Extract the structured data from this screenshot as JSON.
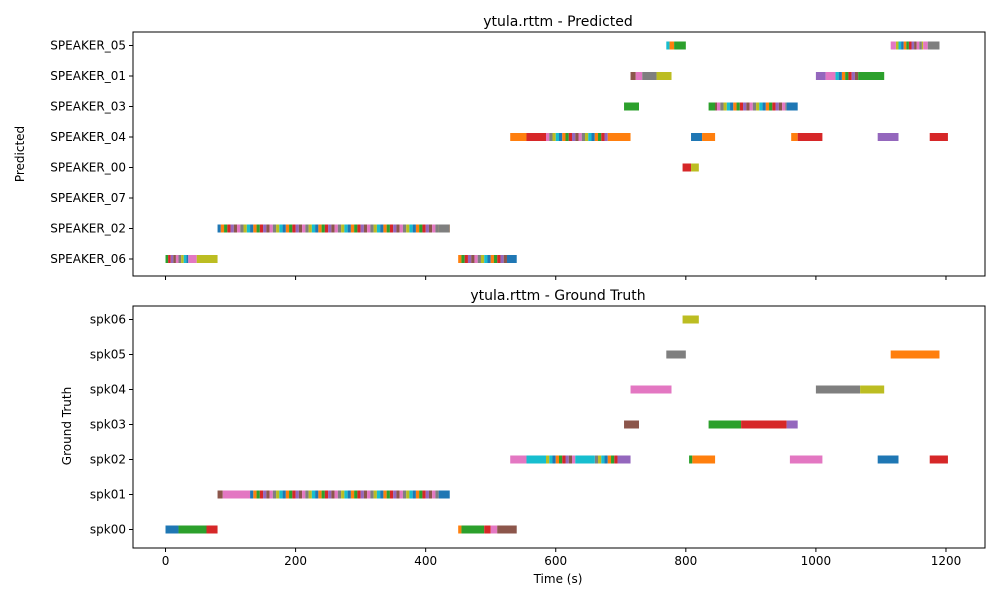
{
  "colors": [
    "#1f77b4",
    "#ff7f0e",
    "#2ca02c",
    "#d62728",
    "#9467bd",
    "#8c564b",
    "#e377c2",
    "#7f7f7f",
    "#bcbd22",
    "#17becf"
  ],
  "chart_data": [
    {
      "type": "timeline",
      "title": "ytula.rttm - Predicted",
      "ylabel": "Predicted",
      "xlabel": "",
      "xlim": [
        -50,
        1260
      ],
      "xticks": [
        0,
        200,
        400,
        600,
        800,
        1000,
        1200
      ],
      "show_xtick_labels": false,
      "grid": false,
      "categories": [
        "SPEAKER_05",
        "SPEAKER_01",
        "SPEAKER_03",
        "SPEAKER_04",
        "SPEAKER_00",
        "SPEAKER_07",
        "SPEAKER_02",
        "SPEAKER_06"
      ],
      "dense_segments": [
        {
          "category": "SPEAKER_02",
          "start": 80,
          "end": 437,
          "step": 5
        },
        {
          "category": "SPEAKER_06",
          "start": 0,
          "end": 35,
          "step": 4
        },
        {
          "category": "SPEAKER_06",
          "start": 450,
          "end": 525,
          "step": 5
        },
        {
          "category": "SPEAKER_04",
          "start": 585,
          "end": 680,
          "step": 5
        },
        {
          "category": "SPEAKER_03",
          "start": 843,
          "end": 955,
          "step": 5
        },
        {
          "category": "SPEAKER_05",
          "start": 1123,
          "end": 1165,
          "step": 4
        },
        {
          "category": "SPEAKER_01",
          "start": 1030,
          "end": 1065,
          "step": 5
        }
      ],
      "segments": [
        {
          "category": "SPEAKER_06",
          "start": 35,
          "end": 48,
          "color": 6
        },
        {
          "category": "SPEAKER_06",
          "start": 48,
          "end": 80,
          "color": 8
        },
        {
          "category": "SPEAKER_06",
          "start": 525,
          "end": 540,
          "color": 0
        },
        {
          "category": "SPEAKER_02",
          "start": 420,
          "end": 437,
          "color": 7
        },
        {
          "category": "SPEAKER_04",
          "start": 530,
          "end": 555,
          "color": 1
        },
        {
          "category": "SPEAKER_04",
          "start": 555,
          "end": 585,
          "color": 3
        },
        {
          "category": "SPEAKER_04",
          "start": 680,
          "end": 715,
          "color": 1
        },
        {
          "category": "SPEAKER_04",
          "start": 808,
          "end": 825,
          "color": 0
        },
        {
          "category": "SPEAKER_04",
          "start": 825,
          "end": 845,
          "color": 1
        },
        {
          "category": "SPEAKER_04",
          "start": 962,
          "end": 972,
          "color": 1
        },
        {
          "category": "SPEAKER_04",
          "start": 972,
          "end": 1010,
          "color": 3
        },
        {
          "category": "SPEAKER_04",
          "start": 1095,
          "end": 1127,
          "color": 4
        },
        {
          "category": "SPEAKER_04",
          "start": 1175,
          "end": 1203,
          "color": 3
        },
        {
          "category": "SPEAKER_00",
          "start": 795,
          "end": 808,
          "color": 3
        },
        {
          "category": "SPEAKER_00",
          "start": 808,
          "end": 820,
          "color": 8
        },
        {
          "category": "SPEAKER_03",
          "start": 705,
          "end": 728,
          "color": 2
        },
        {
          "category": "SPEAKER_03",
          "start": 835,
          "end": 845,
          "color": 2
        },
        {
          "category": "SPEAKER_03",
          "start": 955,
          "end": 972,
          "color": 0
        },
        {
          "category": "SPEAKER_01",
          "start": 715,
          "end": 723,
          "color": 5
        },
        {
          "category": "SPEAKER_01",
          "start": 723,
          "end": 733,
          "color": 6
        },
        {
          "category": "SPEAKER_01",
          "start": 733,
          "end": 755,
          "color": 7
        },
        {
          "category": "SPEAKER_01",
          "start": 755,
          "end": 778,
          "color": 8
        },
        {
          "category": "SPEAKER_01",
          "start": 1000,
          "end": 1015,
          "color": 4
        },
        {
          "category": "SPEAKER_01",
          "start": 1015,
          "end": 1030,
          "color": 6
        },
        {
          "category": "SPEAKER_01",
          "start": 1065,
          "end": 1105,
          "color": 2
        },
        {
          "category": "SPEAKER_05",
          "start": 770,
          "end": 775,
          "color": 9
        },
        {
          "category": "SPEAKER_05",
          "start": 775,
          "end": 782,
          "color": 1
        },
        {
          "category": "SPEAKER_05",
          "start": 782,
          "end": 800,
          "color": 2
        },
        {
          "category": "SPEAKER_05",
          "start": 1115,
          "end": 1123,
          "color": 6
        },
        {
          "category": "SPEAKER_05",
          "start": 1165,
          "end": 1172,
          "color": 6
        },
        {
          "category": "SPEAKER_05",
          "start": 1172,
          "end": 1190,
          "color": 7
        }
      ]
    },
    {
      "type": "timeline",
      "title": "ytula.rttm - Ground Truth",
      "ylabel": "Ground Truth",
      "xlabel": "Time (s)",
      "xlim": [
        -50,
        1260
      ],
      "xticks": [
        0,
        200,
        400,
        600,
        800,
        1000,
        1200
      ],
      "show_xtick_labels": true,
      "grid": false,
      "categories": [
        "spk06",
        "spk05",
        "spk04",
        "spk03",
        "spk02",
        "spk01",
        "spk00"
      ],
      "dense_segments": [
        {
          "category": "spk01",
          "start": 130,
          "end": 420,
          "step": 5
        },
        {
          "category": "spk02",
          "start": 585,
          "end": 630,
          "step": 5
        },
        {
          "category": "spk02",
          "start": 660,
          "end": 695,
          "step": 5
        }
      ],
      "segments": [
        {
          "category": "spk00",
          "start": 0,
          "end": 20,
          "color": 0
        },
        {
          "category": "spk00",
          "start": 20,
          "end": 63,
          "color": 2
        },
        {
          "category": "spk00",
          "start": 63,
          "end": 80,
          "color": 3
        },
        {
          "category": "spk00",
          "start": 450,
          "end": 455,
          "color": 1
        },
        {
          "category": "spk00",
          "start": 455,
          "end": 490,
          "color": 2
        },
        {
          "category": "spk00",
          "start": 490,
          "end": 500,
          "color": 3
        },
        {
          "category": "spk00",
          "start": 500,
          "end": 510,
          "color": 6
        },
        {
          "category": "spk00",
          "start": 510,
          "end": 540,
          "color": 5
        },
        {
          "category": "spk01",
          "start": 80,
          "end": 88,
          "color": 5
        },
        {
          "category": "spk01",
          "start": 88,
          "end": 130,
          "color": 6
        },
        {
          "category": "spk01",
          "start": 420,
          "end": 437,
          "color": 0
        },
        {
          "category": "spk02",
          "start": 530,
          "end": 555,
          "color": 6
        },
        {
          "category": "spk02",
          "start": 555,
          "end": 585,
          "color": 9
        },
        {
          "category": "spk02",
          "start": 630,
          "end": 660,
          "color": 9
        },
        {
          "category": "spk02",
          "start": 695,
          "end": 715,
          "color": 4
        },
        {
          "category": "spk02",
          "start": 805,
          "end": 810,
          "color": 2
        },
        {
          "category": "spk02",
          "start": 810,
          "end": 845,
          "color": 1
        },
        {
          "category": "spk02",
          "start": 960,
          "end": 1010,
          "color": 6
        },
        {
          "category": "spk02",
          "start": 1095,
          "end": 1127,
          "color": 0
        },
        {
          "category": "spk02",
          "start": 1175,
          "end": 1203,
          "color": 3
        },
        {
          "category": "spk03",
          "start": 705,
          "end": 728,
          "color": 5
        },
        {
          "category": "spk03",
          "start": 835,
          "end": 885,
          "color": 2
        },
        {
          "category": "spk03",
          "start": 885,
          "end": 955,
          "color": 3
        },
        {
          "category": "spk03",
          "start": 955,
          "end": 972,
          "color": 4
        },
        {
          "category": "spk04",
          "start": 715,
          "end": 778,
          "color": 6
        },
        {
          "category": "spk04",
          "start": 1000,
          "end": 1068,
          "color": 7
        },
        {
          "category": "spk04",
          "start": 1068,
          "end": 1105,
          "color": 8
        },
        {
          "category": "spk05",
          "start": 770,
          "end": 800,
          "color": 7
        },
        {
          "category": "spk05",
          "start": 1115,
          "end": 1190,
          "color": 1
        },
        {
          "category": "spk06",
          "start": 795,
          "end": 820,
          "color": 8
        }
      ]
    }
  ]
}
